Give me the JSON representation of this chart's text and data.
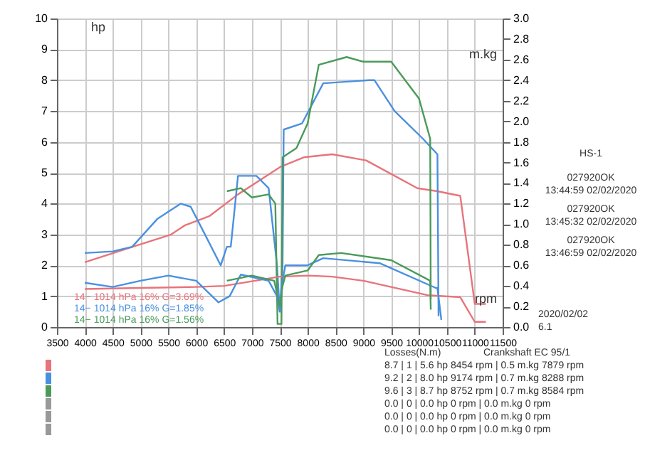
{
  "chart_data": {
    "type": "line",
    "xlabel": "rpm",
    "ylabel": "hp",
    "y2label": "m.kg",
    "xlim": [
      3500,
      11500
    ],
    "xticks": [
      3500,
      4000,
      4500,
      5000,
      5500,
      6000,
      6500,
      7000,
      7500,
      8000,
      8500,
      9000,
      9500,
      10000,
      10500,
      11000,
      11500
    ],
    "ylim": [
      0,
      10
    ],
    "yticks": [
      0,
      1,
      2,
      3,
      4,
      5,
      6,
      7,
      8,
      9,
      10
    ],
    "y2lim": [
      0,
      3
    ],
    "y2ticks": [
      {
        "value": 0,
        "label": "0.0"
      },
      0.2,
      0.4,
      0.6,
      0.8,
      {
        "value": 1,
        "label": "1.0"
      },
      1.2,
      1.4,
      1.6,
      1.8,
      {
        "value": 2,
        "label": "2.0"
      },
      2.2,
      2.4,
      2.6,
      2.8,
      {
        "value": 3,
        "label": "3.0"
      }
    ],
    "grid": true,
    "marker": "none",
    "line_style": "solid",
    "series": [
      {
        "color": "#e8737a",
        "x": [
          4000,
          4860,
          5550,
          5800,
          6240,
          6750,
          7520,
          7930,
          8440,
          9050,
          9970,
          10330,
          10740,
          11000,
          11200
        ],
        "values": [
          2.1,
          2.6,
          3.0,
          3.3,
          3.6,
          4.3,
          5.2,
          5.5,
          5.6,
          5.4,
          4.5,
          4.4,
          4.25,
          0.75,
          0.75
        ]
      },
      {
        "color": "#4a90e0",
        "x": [
          4000,
          4500,
          4850,
          5300,
          5720,
          5900,
          6100,
          6440,
          6550,
          6620,
          6750,
          7080,
          7300,
          7450,
          7500,
          7550,
          7570,
          7900,
          8280,
          9100,
          9200,
          9560,
          10070,
          10330,
          10350
        ],
        "values": [
          2.4,
          2.45,
          2.6,
          3.5,
          4.0,
          3.9,
          3.2,
          2.0,
          2.6,
          2.6,
          4.9,
          4.9,
          4.5,
          2.0,
          0.5,
          2.0,
          6.4,
          6.6,
          7.9,
          8.0,
          8.0,
          7.0,
          6.1,
          5.6,
          0.35
        ]
      },
      {
        "color": "#4a9a5a",
        "x": [
          6550,
          6800,
          7000,
          7300,
          7420,
          7460,
          7530,
          7550,
          7800,
          8000,
          8200,
          8700,
          9000,
          9500,
          10000,
          10200,
          10210
        ],
        "values": [
          4.4,
          4.5,
          4.2,
          4.3,
          4.0,
          0.1,
          0.1,
          5.5,
          5.8,
          6.6,
          8.5,
          8.75,
          8.6,
          8.6,
          7.4,
          6.1,
          0.9
        ]
      },
      {
        "color": "#e8737a",
        "axis": "y2",
        "x": [
          4000,
          5000,
          6000,
          6500,
          7500,
          8020,
          8440,
          9000,
          10150,
          10740,
          11000,
          11200
        ],
        "values": [
          0.37,
          0.38,
          0.39,
          0.4,
          0.49,
          0.5,
          0.49,
          0.45,
          0.31,
          0.29,
          0.05,
          0.05
        ]
      },
      {
        "color": "#4a90e0",
        "axis": "y2",
        "x": [
          4000,
          4500,
          5000,
          5500,
          6000,
          6400,
          6600,
          6800,
          7300,
          7450,
          7500,
          7550,
          7600,
          8000,
          8280,
          9300,
          10300,
          10330,
          10400
        ],
        "values": [
          0.43,
          0.39,
          0.45,
          0.5,
          0.45,
          0.24,
          0.3,
          0.51,
          0.45,
          0.3,
          0.15,
          0.45,
          0.6,
          0.6,
          0.67,
          0.62,
          0.38,
          0.38,
          0.07
        ]
      },
      {
        "color": "#4a9a5a",
        "axis": "y2",
        "x": [
          6550,
          7000,
          7400,
          7500,
          7550,
          7600,
          8000,
          8200,
          8600,
          9500,
          10200,
          10210
        ],
        "values": [
          0.45,
          0.5,
          0.45,
          0.2,
          0.4,
          0.5,
          0.55,
          0.7,
          0.72,
          0.65,
          0.45,
          0.17
        ]
      }
    ],
    "annotations": [
      "14−   1014 hPa  16%    G=3.69%",
      "14−   1014 hPa  16%    G=1.85%",
      "14−   1014 hPa  16%    G=1.56%",
      "HS-1",
      "027920OK",
      "13:44:59  02/02/2020",
      "027920OK",
      "13:45:32  02/02/2020",
      "027920OK",
      "13:46:59  02/02/2020",
      "2020/02/02",
      "6.1",
      "Losses(N.m)",
      "Crankshaft EC 95/1",
      "8.7 | 1 | 5.6 hp 8454 rpm | 0.5 m.kg 7879 rpm",
      "9.2 | 2 | 8.0 hp 9174 rpm | 0.7 m.kg 8288 rpm",
      "9.6 | 3 | 8.7 hp 8752 rpm | 0.7 m.kg 8584 rpm",
      "0.0 | 0 | 0.0 hp 0 rpm | 0.0 m.kg 0 rpm",
      "0.0 | 0 | 0.0 hp 0 rpm | 0.0 m.kg 0 rpm",
      "0.0 | 0 | 0.0 hp 0 rpm | 0.0 m.kg 0 rpm"
    ]
  }
}
